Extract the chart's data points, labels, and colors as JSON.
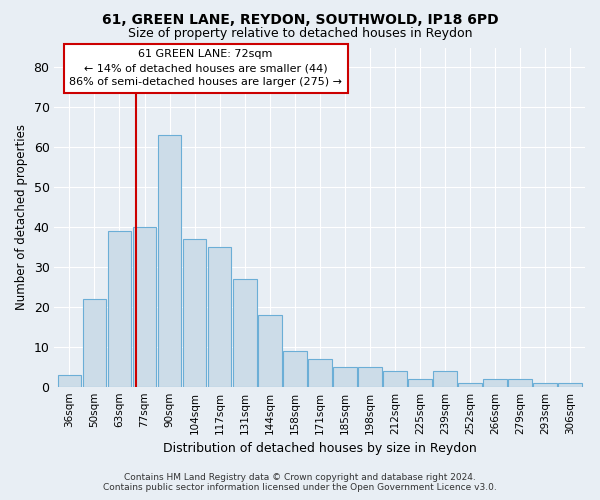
{
  "title1": "61, GREEN LANE, REYDON, SOUTHWOLD, IP18 6PD",
  "title2": "Size of property relative to detached houses in Reydon",
  "xlabel": "Distribution of detached houses by size in Reydon",
  "ylabel": "Number of detached properties",
  "categories": [
    "36sqm",
    "50sqm",
    "63sqm",
    "77sqm",
    "90sqm",
    "104sqm",
    "117sqm",
    "131sqm",
    "144sqm",
    "158sqm",
    "171sqm",
    "185sqm",
    "198sqm",
    "212sqm",
    "225sqm",
    "239sqm",
    "252sqm",
    "266sqm",
    "279sqm",
    "293sqm",
    "306sqm"
  ],
  "values": [
    3,
    22,
    39,
    40,
    63,
    37,
    35,
    27,
    18,
    9,
    7,
    5,
    5,
    4,
    2,
    4,
    1,
    2,
    2,
    1,
    1
  ],
  "bar_color": "#ccdce8",
  "bar_edge_color": "#6baed6",
  "vline_index": 3,
  "vline_color": "#cc0000",
  "ylim": [
    0,
    85
  ],
  "yticks": [
    0,
    10,
    20,
    30,
    40,
    50,
    60,
    70,
    80
  ],
  "annotation_line1": "61 GREEN LANE: 72sqm",
  "annotation_line2": "← 14% of detached houses are smaller (44)",
  "annotation_line3": "86% of semi-detached houses are larger (275) →",
  "annotation_box_color": "#cc0000",
  "annotation_box_fill": "#ffffff",
  "footer_line1": "Contains HM Land Registry data © Crown copyright and database right 2024.",
  "footer_line2": "Contains public sector information licensed under the Open Government Licence v3.0.",
  "background_color": "#e8eef4",
  "grid_color": "#ffffff"
}
